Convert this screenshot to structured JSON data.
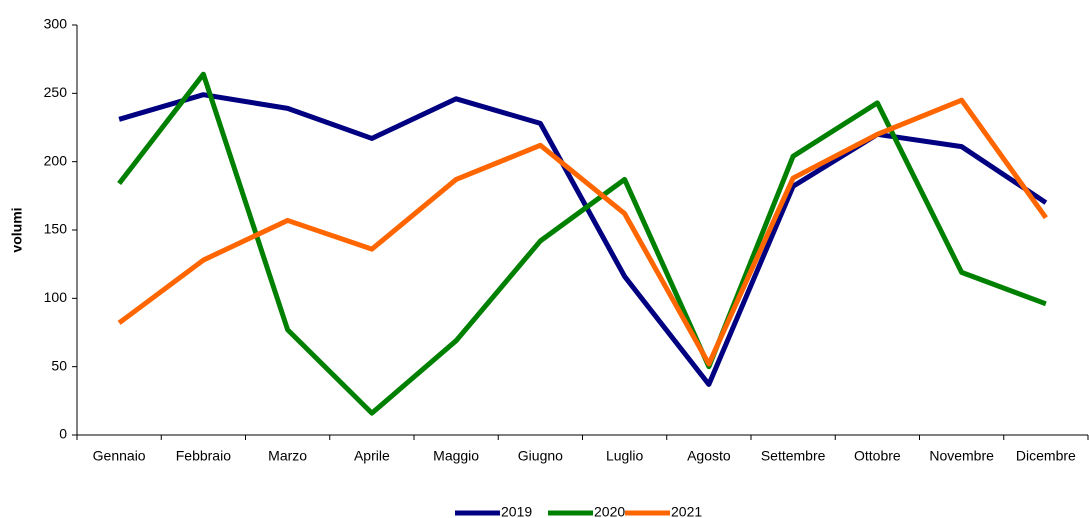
{
  "chart_data": {
    "type": "line",
    "y_label": "volumi",
    "categories": [
      "Gennaio",
      "Febbraio",
      "Marzo",
      "Aprile",
      "Maggio",
      "Giugno",
      "Luglio",
      "Agosto",
      "Settembre",
      "Ottobre",
      "Novembre",
      "Dicembre"
    ],
    "series": [
      {
        "name": "2019",
        "color": "#000080",
        "values": [
          231,
          249,
          239,
          217,
          246,
          228,
          116,
          37,
          182,
          220,
          211,
          170
        ]
      },
      {
        "name": "2020",
        "color": "#008000",
        "values": [
          184,
          264,
          77,
          16,
          69,
          142,
          187,
          50,
          204,
          243,
          119,
          96
        ]
      },
      {
        "name": "2021",
        "color": "#ff6600",
        "values": [
          82,
          128,
          157,
          136,
          187,
          212,
          162,
          52,
          188,
          220,
          245,
          159
        ]
      }
    ],
    "ylim": [
      0,
      300
    ],
    "yticks": [
      0,
      50,
      100,
      150,
      200,
      250,
      300
    ],
    "legend": "bottom"
  }
}
